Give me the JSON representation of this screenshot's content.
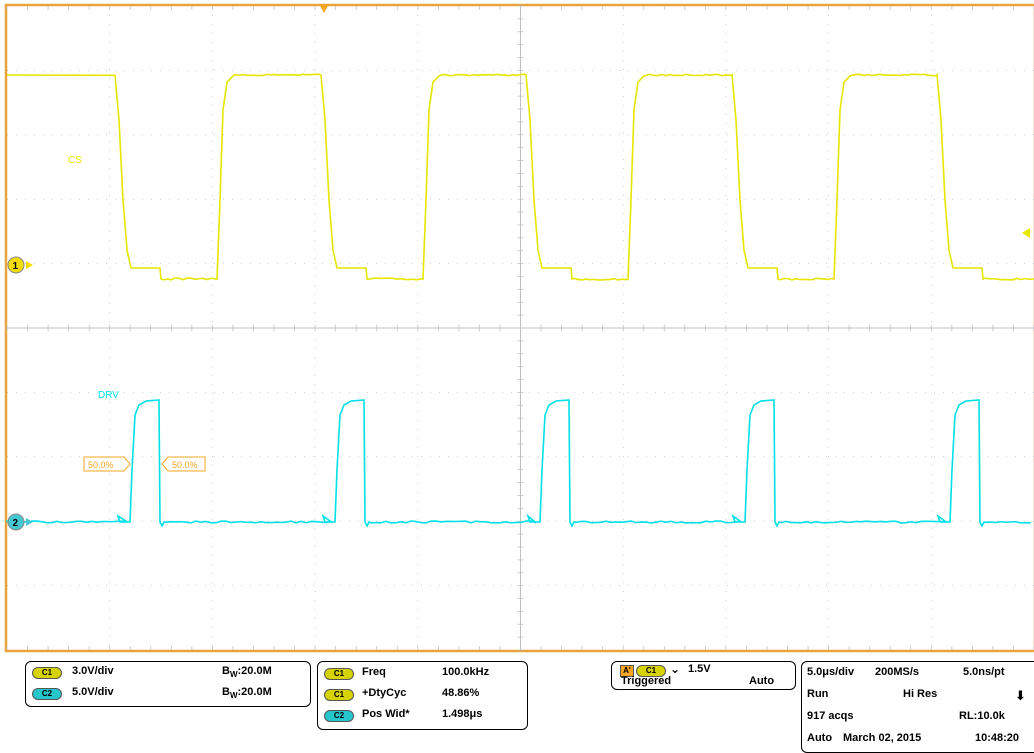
{
  "channels": [
    {
      "id": "C1",
      "label": "CS",
      "marker": "1",
      "color": "#e6e600",
      "marker_color": "#f5dc00"
    },
    {
      "id": "C2",
      "label": "DRV",
      "marker": "2",
      "color": "#00e0e6",
      "marker_color": "#46c8d2"
    }
  ],
  "cursors": {
    "left_label": "50.0%",
    "right_label": "50.0%",
    "color": "#f5a623"
  },
  "colors": {
    "graticule_border": "#e8a33a",
    "grid": "#b0b0b0",
    "background": "#ffffff"
  },
  "vertical_panel": {
    "c1_pill": "C1",
    "c1_scale": "3.0V/div",
    "c1_bw_prefix": "B",
    "c1_bw_sub": "W",
    "c1_bw": ":20.0M",
    "c2_pill": "C2",
    "c2_scale": "5.0V/div",
    "c2_bw_prefix": "B",
    "c2_bw_sub": "W",
    "c2_bw": ":20.0M"
  },
  "measurements": [
    {
      "pill": "C1",
      "name": "Freq",
      "value": "100.0kHz"
    },
    {
      "pill": "C1",
      "name": "+DtyCyc",
      "value": "48.86%"
    },
    {
      "pill": "C2",
      "name": "Pos Wid*",
      "value": "1.498μs"
    }
  ],
  "trigger_panel": {
    "a_label": "A'",
    "pill": "C1",
    "slope": "⌄",
    "level": "1.5V",
    "state": "Triggered",
    "mode": "Auto"
  },
  "acquisition_panel": {
    "time_div": "5.0μs/div",
    "sample_rate": "200MS/s",
    "ns_pt": "5.0ns/pt",
    "run": "Run",
    "hires": "Hi Res",
    "arrow": "⬇",
    "acqs": "917 acqs",
    "record_length": "RL:10.0k",
    "auto": "Auto",
    "date": "March 02, 2015",
    "time": "10:48:20"
  }
}
